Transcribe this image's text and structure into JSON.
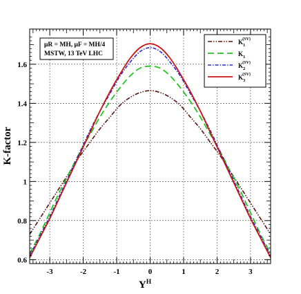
{
  "chart_data": {
    "type": "line",
    "xlabel": "Y",
    "xlabel_sup": "H",
    "ylabel": "K-factor",
    "xlim": [
      -3.6,
      3.6
    ],
    "ylim": [
      0.58,
      1.78
    ],
    "xticks": [
      -3,
      -2,
      -1,
      0,
      1,
      2,
      3
    ],
    "xtick_labels": [
      "-3",
      "-2",
      "-1",
      "0",
      "1",
      "2",
      "3"
    ],
    "yticks": [
      0.6,
      0.8,
      1.0,
      1.2,
      1.4,
      1.6
    ],
    "ytick_labels": [
      "0.6",
      "0.8",
      "1",
      "1.2",
      "1.4",
      "1.6"
    ],
    "grid": true,
    "legend_position": "top-right",
    "annotation": {
      "line1": "μR = MH,  μF = MH/4",
      "line2": "MSTW, 13 TeV LHC"
    },
    "x": [
      -3.6,
      -3.3,
      -3.0,
      -2.7,
      -2.4,
      -2.1,
      -1.8,
      -1.5,
      -1.2,
      -0.9,
      -0.6,
      -0.3,
      0,
      0.3,
      0.6,
      0.9,
      1.2,
      1.5,
      1.8,
      2.1,
      2.4,
      2.7,
      3.0,
      3.3,
      3.6
    ],
    "series": [
      {
        "name": "K1(SV)",
        "label_main": "K",
        "label_sub": "1",
        "label_sup": "(SV)",
        "color": "#5c1010",
        "dash": "6 2 1.5 2 1.5 2",
        "width": 1.6,
        "values": [
          0.73,
          0.81,
          0.89,
          0.97,
          1.05,
          1.13,
          1.2,
          1.27,
          1.33,
          1.39,
          1.43,
          1.455,
          1.465,
          1.455,
          1.43,
          1.39,
          1.33,
          1.27,
          1.2,
          1.13,
          1.05,
          0.97,
          0.89,
          0.81,
          0.73
        ]
      },
      {
        "name": "K1",
        "label_main": "K",
        "label_sub": "1",
        "label_sup": "",
        "color": "#22c422",
        "dash": "9 5",
        "width": 1.8,
        "values": [
          0.63,
          0.73,
          0.84,
          0.95,
          1.05,
          1.15,
          1.24,
          1.33,
          1.41,
          1.48,
          1.54,
          1.58,
          1.59,
          1.58,
          1.54,
          1.48,
          1.41,
          1.33,
          1.24,
          1.15,
          1.05,
          0.95,
          0.84,
          0.73,
          0.63
        ]
      },
      {
        "name": "K2(SV)",
        "label_main": "K",
        "label_sub": "2",
        "label_sup": "(SV)",
        "color": "#2a2acf",
        "dash": "5 2 1.5 2",
        "width": 1.6,
        "values": [
          0.62,
          0.72,
          0.82,
          0.93,
          1.04,
          1.15,
          1.26,
          1.36,
          1.45,
          1.54,
          1.61,
          1.665,
          1.685,
          1.665,
          1.61,
          1.54,
          1.45,
          1.36,
          1.26,
          1.15,
          1.04,
          0.93,
          0.82,
          0.72,
          0.62
        ]
      },
      {
        "name": "K3(SV)",
        "label_main": "K",
        "label_sub": "3",
        "label_sup": "(SV)",
        "color": "#c81414",
        "dash": "",
        "width": 1.8,
        "values": [
          0.61,
          0.71,
          0.81,
          0.92,
          1.03,
          1.14,
          1.25,
          1.36,
          1.46,
          1.55,
          1.63,
          1.685,
          1.705,
          1.685,
          1.63,
          1.55,
          1.46,
          1.36,
          1.25,
          1.14,
          1.03,
          0.92,
          0.81,
          0.71,
          0.61
        ]
      }
    ]
  }
}
